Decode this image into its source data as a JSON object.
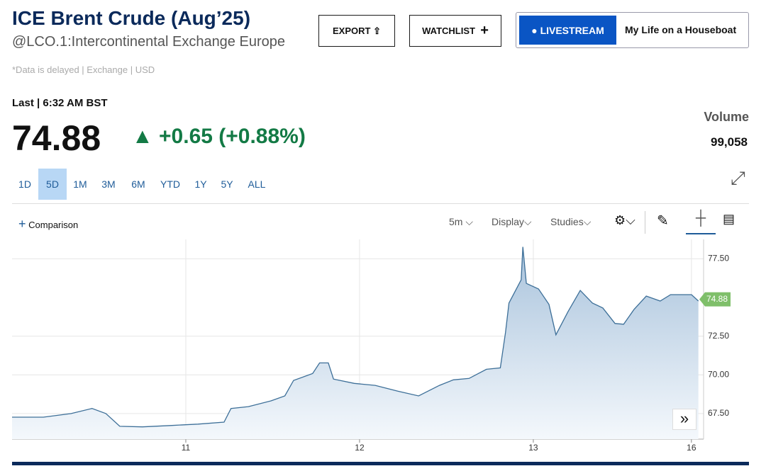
{
  "header": {
    "title": "ICE Brent Crude (Aug’25)",
    "subtitle": "@LCO.1:Intercontinental Exchange Europe",
    "buttons": {
      "export": "EXPORT",
      "watchlist": "WATCHLIST",
      "livestream": "LIVESTREAM",
      "show": "My Life on a Houseboat"
    },
    "note": "*Data is delayed | Exchange | USD",
    "last_label": "Last | 6:32 AM BST",
    "last": "74.88",
    "change": "+0.65 (+0.88%)",
    "volume_label": "Volume",
    "volume": "99,058"
  },
  "ranges": [
    "1D",
    "5D",
    "1M",
    "3M",
    "6M",
    "YTD",
    "1Y",
    "5Y",
    "ALL"
  ],
  "toolbar": {
    "comparison": "Comparison",
    "interval": "5m",
    "display": "Display",
    "studies": "Studies"
  },
  "chart_data": {
    "type": "line",
    "color": "#3d6f98",
    "x": [
      0,
      0.18,
      0.34,
      0.46,
      0.54,
      0.62,
      0.75,
      0.91,
      1.07,
      1.22,
      1.26,
      1.36,
      1.49,
      1.57,
      1.62,
      1.73,
      1.77,
      1.82,
      1.85,
      1.97,
      2.09,
      2.22,
      2.34,
      2.46,
      2.54,
      2.63,
      2.73,
      2.81,
      2.84,
      2.86,
      2.93,
      2.94,
      2.96,
      3.03,
      3.09,
      3.13,
      3.2,
      3.27,
      3.34,
      3.4,
      3.47,
      3.52,
      3.58,
      3.65,
      3.73,
      3.79,
      3.91,
      3.95
    ],
    "values": [
      67.27,
      67.27,
      67.5,
      67.83,
      67.5,
      66.68,
      66.64,
      66.73,
      66.82,
      66.95,
      67.83,
      67.95,
      68.32,
      68.64,
      69.64,
      70.09,
      70.77,
      70.77,
      69.73,
      69.45,
      69.32,
      68.95,
      68.64,
      69.32,
      69.68,
      69.77,
      70.36,
      70.45,
      72.73,
      74.64,
      76.14,
      78.27,
      75.91,
      75.55,
      74.55,
      72.59,
      74.09,
      75.45,
      74.64,
      74.32,
      73.32,
      73.27,
      74.23,
      75.09,
      74.77,
      75.18,
      75.18,
      74.77
    ],
    "xlim": [
      0,
      3.98
    ],
    "ylim": [
      65.85,
      78.75
    ],
    "xticks": [
      {
        "value": 1,
        "label": "11"
      },
      {
        "value": 2,
        "label": "12"
      },
      {
        "value": 3,
        "label": "13"
      },
      {
        "value": 3.91,
        "label": "16"
      }
    ],
    "yticks": [
      {
        "value": 67.5,
        "label": "67.50"
      },
      {
        "value": 70,
        "label": "70.00"
      },
      {
        "value": 72.5,
        "label": "72.50"
      },
      {
        "value": 77.5,
        "label": "77.50"
      }
    ],
    "last_value": 74.88,
    "grid": true
  }
}
